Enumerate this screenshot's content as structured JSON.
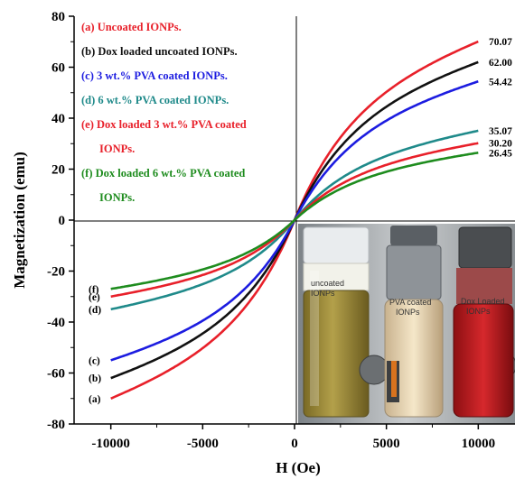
{
  "chart_data": {
    "type": "line",
    "xlabel": "H (Oe)",
    "ylabel": "Magnetization (emu)",
    "xlim": [
      -12000,
      12000
    ],
    "ylim": [
      -80,
      80
    ],
    "x_ticks": [
      -10000,
      -5000,
      0,
      5000,
      10000
    ],
    "y_ticks": [
      80,
      60,
      40,
      20,
      0,
      -20,
      -40,
      -60,
      -80
    ],
    "x_tick_labels": [
      "-10000",
      "-5000",
      "0",
      "5000",
      "10000"
    ],
    "y_tick_labels": [
      "80",
      "60",
      "40",
      "20",
      "0",
      "-20",
      "-40",
      "-60",
      "-80"
    ],
    "legend_position": "top-left",
    "series": [
      {
        "letter": "(a)",
        "name": "Uncoated IONPs.",
        "name_lines": [
          "Uncoated IONPs."
        ],
        "color": "#e8202a",
        "ms": 70.07,
        "end_label": "70.07",
        "neg_value": -70
      },
      {
        "letter": "(b)",
        "name": "Dox loaded uncoated IONPs.",
        "name_lines": [
          "Dox loaded uncoated IONPs."
        ],
        "color": "#111111",
        "ms": 62.0,
        "end_label": "62.00",
        "neg_value": -62
      },
      {
        "letter": "(c)",
        "name": "3 wt.% PVA coated IONPs.",
        "name_lines": [
          "3 wt.% PVA coated IONPs."
        ],
        "color": "#1c1ce0",
        "ms": 54.42,
        "end_label": "54.42",
        "neg_value": -55
      },
      {
        "letter": "(d)",
        "name": "6 wt.% PVA coated IONPs.",
        "name_lines": [
          "6 wt.% PVA coated IONPs."
        ],
        "color": "#1f8a8a",
        "ms": 35.07,
        "end_label": "35.07",
        "neg_value": -35
      },
      {
        "letter": "(e)",
        "name": "Dox loaded 3 wt.% PVA coated IONPs.",
        "name_lines": [
          "Dox loaded 3 wt.% PVA coated",
          "IONPs."
        ],
        "color": "#e8202a",
        "ms": 30.2,
        "end_label": "30.20",
        "neg_value": -30
      },
      {
        "letter": "(f)",
        "name": "Dox loaded 6 wt.% PVA coated IONPs.",
        "name_lines": [
          "Dox loaded 6 wt.% PVA coated",
          "IONPs."
        ],
        "color": "#1e8c1e",
        "ms": 26.45,
        "end_label": "26.45",
        "neg_value": -27
      }
    ]
  },
  "inset_photos": [
    {
      "label_lines": [
        "uncoated",
        "IONPs"
      ]
    },
    {
      "label_lines": [
        "PVA coated",
        "IONPs"
      ]
    },
    {
      "label_lines": [
        "Dox Loaded",
        "IONPs"
      ]
    }
  ]
}
